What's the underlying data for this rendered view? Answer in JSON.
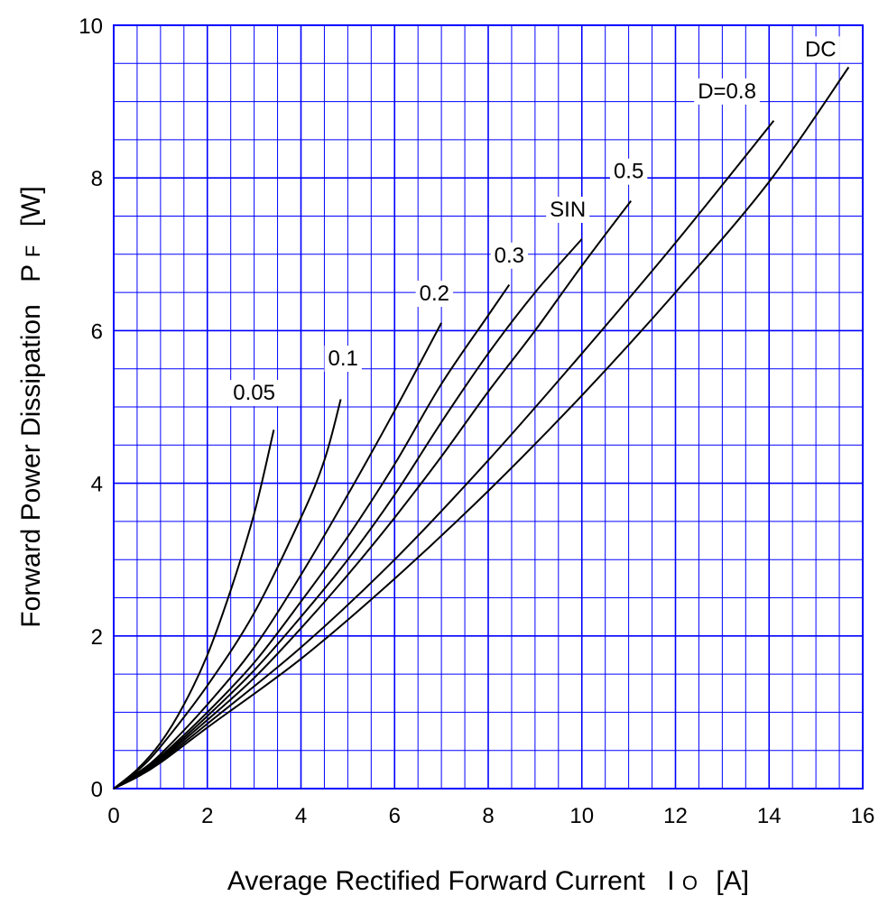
{
  "chart_data": {
    "type": "line",
    "title": "",
    "xlabel": {
      "main": "Average Rectified Forward Current",
      "symbol": "I",
      "sub": "O",
      "unit": "[A]"
    },
    "ylabel": {
      "main": "Forward Power Dissipation",
      "symbol": "P",
      "sub": "F",
      "unit": "[W]"
    },
    "xlim": [
      0,
      16
    ],
    "ylim": [
      0,
      10
    ],
    "x_ticks": [
      "0",
      "2",
      "4",
      "6",
      "8",
      "10",
      "12",
      "14",
      "16"
    ],
    "y_ticks": [
      "0",
      "2",
      "4",
      "6",
      "8",
      "10"
    ],
    "grid": true,
    "grid_color": "#0000ff",
    "line_color": "#000000",
    "series": [
      {
        "name": "0.05",
        "points": [
          [
            0,
            0
          ],
          [
            0.5,
            0.25
          ],
          [
            1,
            0.6
          ],
          [
            1.5,
            1.1
          ],
          [
            2,
            1.75
          ],
          [
            2.5,
            2.6
          ],
          [
            3,
            3.6
          ],
          [
            3.42,
            4.7
          ]
        ]
      },
      {
        "name": "0.1",
        "points": [
          [
            0,
            0
          ],
          [
            0.5,
            0.23
          ],
          [
            1,
            0.55
          ],
          [
            2,
            1.35
          ],
          [
            3,
            2.3
          ],
          [
            4,
            3.55
          ],
          [
            4.5,
            4.3
          ],
          [
            4.85,
            5.1
          ]
        ]
      },
      {
        "name": "0.2",
        "points": [
          [
            0,
            0
          ],
          [
            0.5,
            0.2
          ],
          [
            1,
            0.45
          ],
          [
            2,
            1.1
          ],
          [
            3,
            1.85
          ],
          [
            4,
            2.8
          ],
          [
            5,
            3.85
          ],
          [
            6,
            4.95
          ],
          [
            7,
            6.1
          ]
        ]
      },
      {
        "name": "0.3",
        "points": [
          [
            0,
            0
          ],
          [
            0.5,
            0.18
          ],
          [
            1,
            0.42
          ],
          [
            2,
            1.0
          ],
          [
            3,
            1.65
          ],
          [
            4,
            2.45
          ],
          [
            5,
            3.3
          ],
          [
            6,
            4.25
          ],
          [
            7,
            5.3
          ],
          [
            8,
            6.2
          ],
          [
            8.45,
            6.6
          ]
        ]
      },
      {
        "name": "SIN",
        "points": [
          [
            0,
            0
          ],
          [
            0.5,
            0.18
          ],
          [
            1,
            0.4
          ],
          [
            2,
            0.95
          ],
          [
            3,
            1.55
          ],
          [
            4,
            2.25
          ],
          [
            5,
            3.0
          ],
          [
            6,
            3.85
          ],
          [
            7,
            4.8
          ],
          [
            8,
            5.7
          ],
          [
            9,
            6.5
          ],
          [
            10,
            7.2
          ]
        ]
      },
      {
        "name": "0.5",
        "points": [
          [
            0,
            0
          ],
          [
            0.5,
            0.17
          ],
          [
            1,
            0.38
          ],
          [
            2,
            0.9
          ],
          [
            3,
            1.45
          ],
          [
            4,
            2.1
          ],
          [
            5,
            2.8
          ],
          [
            6,
            3.55
          ],
          [
            7,
            4.35
          ],
          [
            8,
            5.2
          ],
          [
            9,
            6.0
          ],
          [
            10,
            6.85
          ],
          [
            11.05,
            7.7
          ]
        ]
      },
      {
        "name": "D=0.8",
        "points": [
          [
            0,
            0
          ],
          [
            0.5,
            0.16
          ],
          [
            1,
            0.36
          ],
          [
            2,
            0.85
          ],
          [
            4,
            1.85
          ],
          [
            6,
            3.0
          ],
          [
            8,
            4.3
          ],
          [
            10,
            5.7
          ],
          [
            12,
            7.15
          ],
          [
            14.1,
            8.75
          ]
        ]
      },
      {
        "name": "DC",
        "points": [
          [
            0,
            0
          ],
          [
            0.5,
            0.15
          ],
          [
            1,
            0.34
          ],
          [
            2,
            0.8
          ],
          [
            4,
            1.7
          ],
          [
            6,
            2.75
          ],
          [
            8,
            3.9
          ],
          [
            10,
            5.15
          ],
          [
            12,
            6.5
          ],
          [
            14,
            7.95
          ],
          [
            15.7,
            9.45
          ]
        ]
      }
    ],
    "labels": [
      {
        "text": "0.05",
        "x": 3.0,
        "y": 5.2
      },
      {
        "text": "0.1",
        "x": 4.9,
        "y": 5.65
      },
      {
        "text": "0.2",
        "x": 6.85,
        "y": 6.5
      },
      {
        "text": "0.3",
        "x": 8.45,
        "y": 7.0
      },
      {
        "text": "SIN",
        "x": 9.7,
        "y": 7.6
      },
      {
        "text": "0.5",
        "x": 11.0,
        "y": 8.1
      },
      {
        "text": "D=0.8",
        "x": 13.1,
        "y": 9.15
      },
      {
        "text": "DC",
        "x": 15.1,
        "y": 9.7
      }
    ]
  }
}
